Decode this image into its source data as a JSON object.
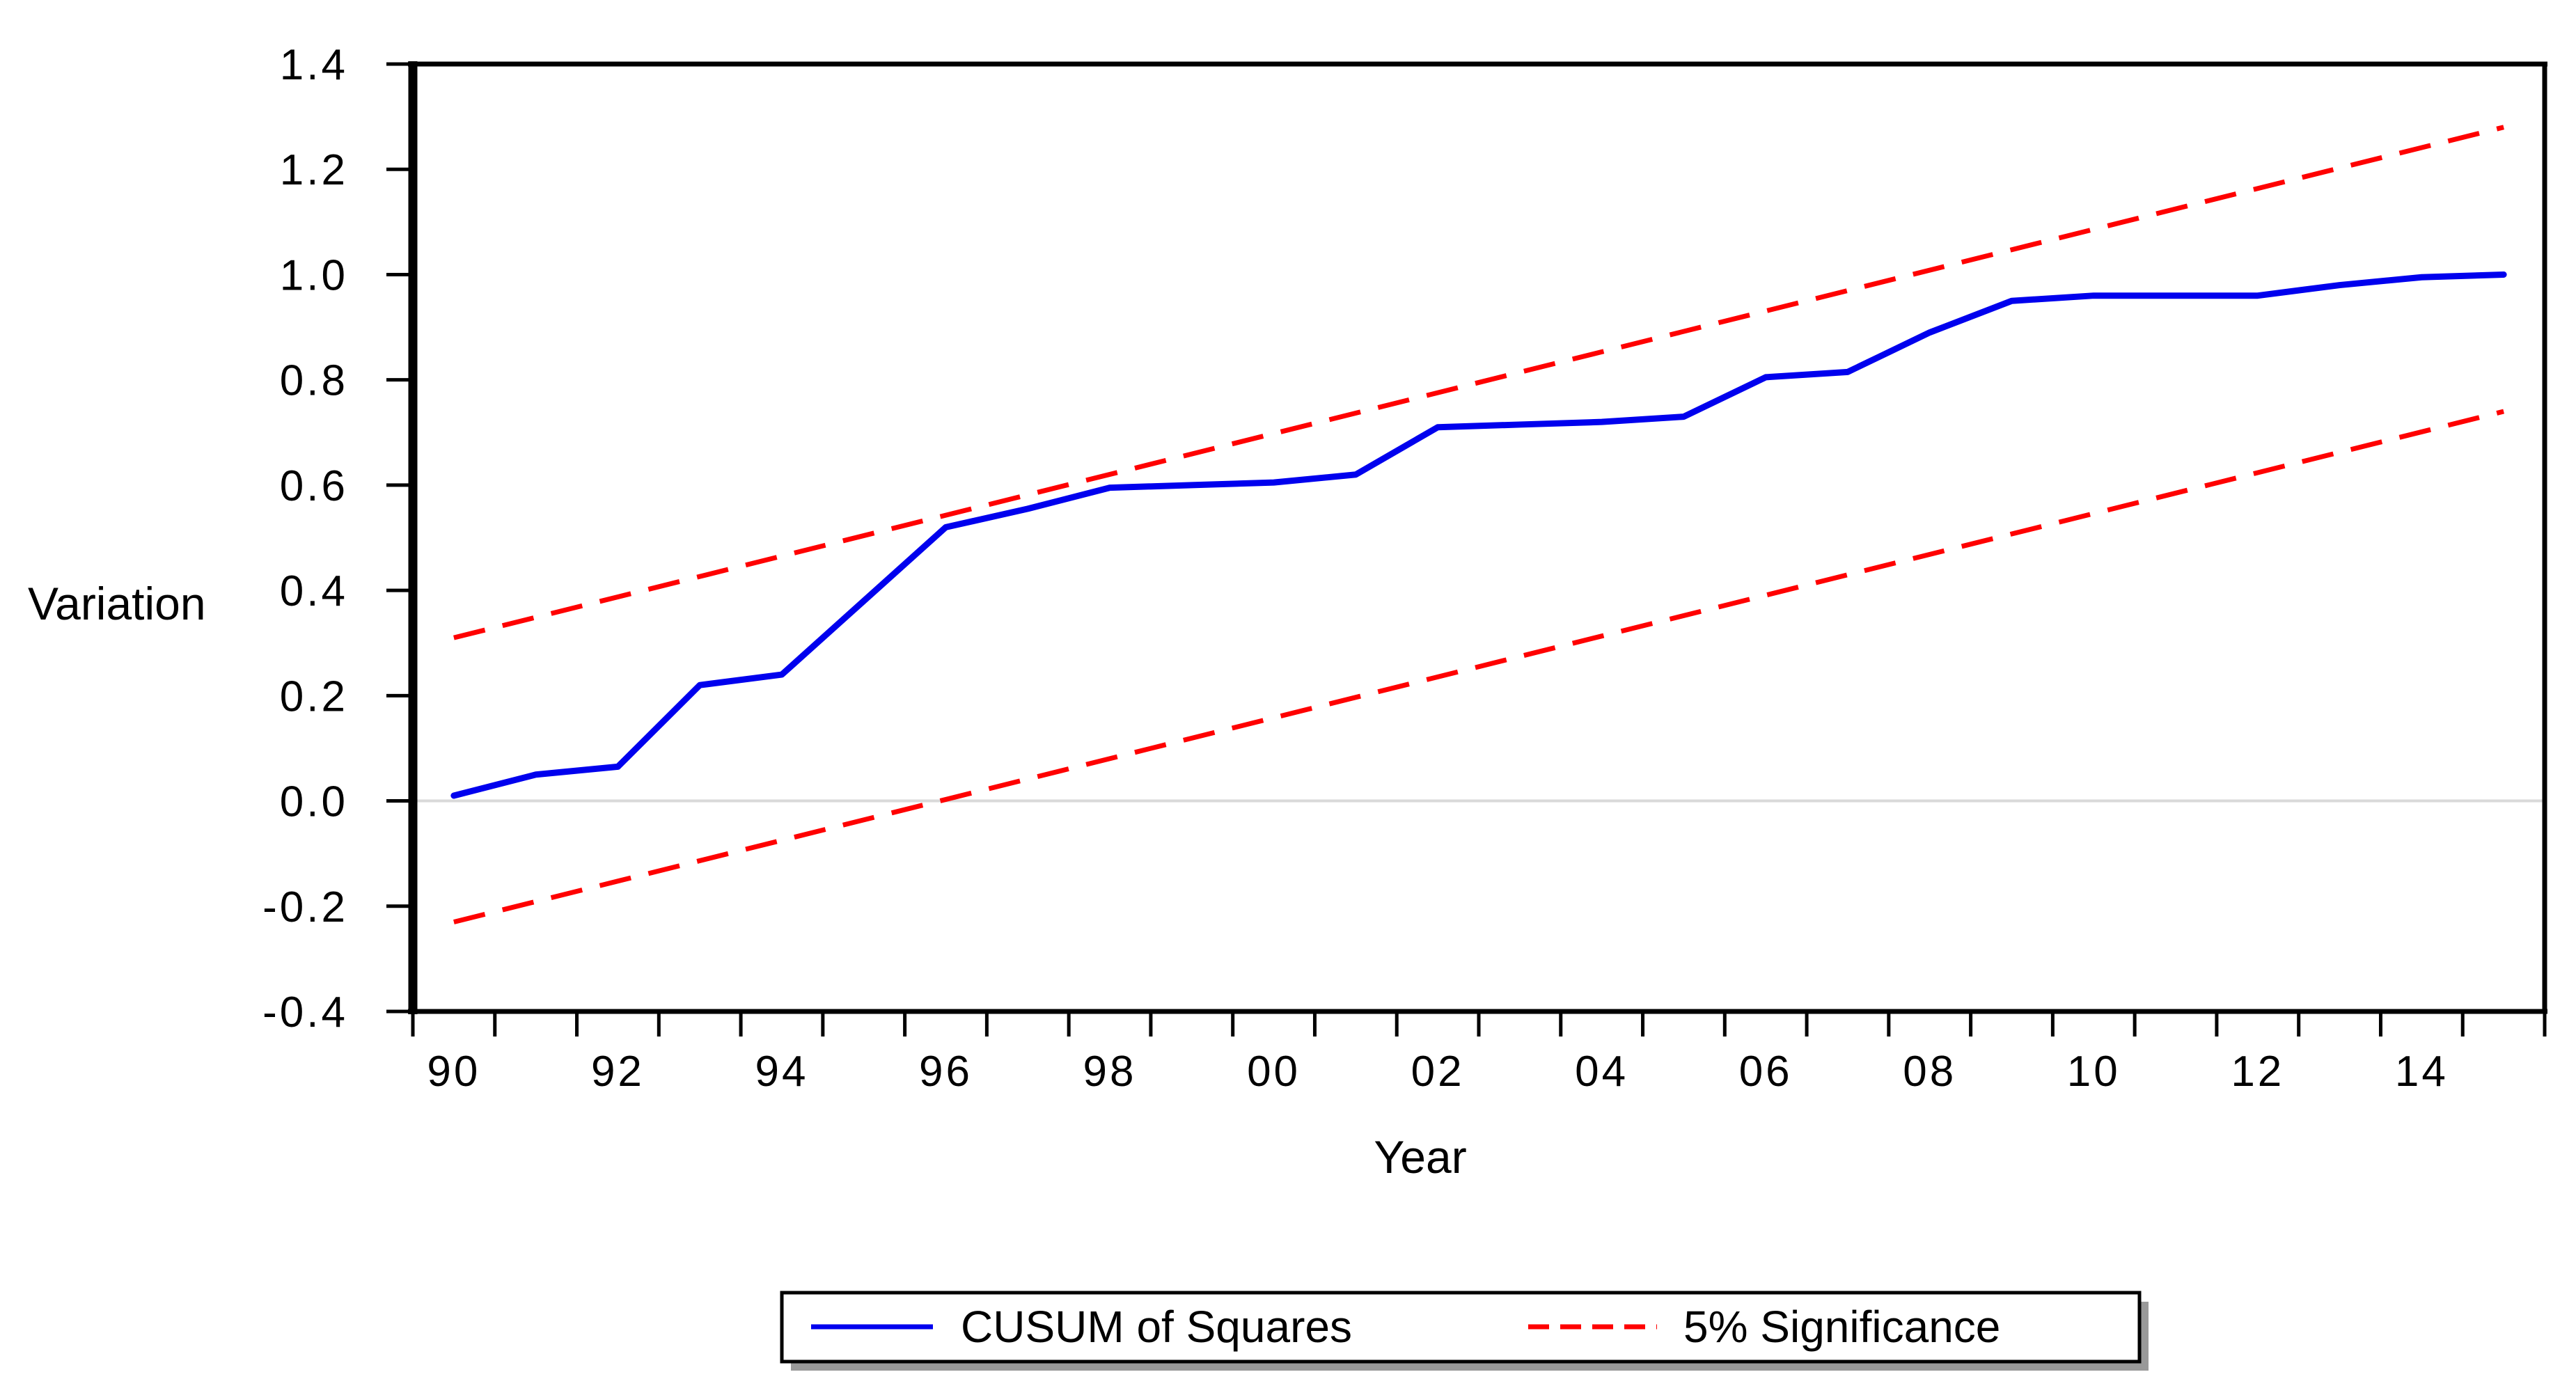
{
  "chart_data": {
    "type": "line",
    "title": "",
    "xlabel": "Year",
    "ylabel": "Variation",
    "x_range_boundaries": [
      1990,
      2016
    ],
    "ylim": [
      -0.4,
      1.4
    ],
    "y_ticks": [
      1.4,
      1.2,
      1.0,
      0.8,
      0.6,
      0.4,
      0.2,
      0.0,
      -0.2,
      -0.4
    ],
    "y_tick_labels": [
      "1.4",
      "1.2",
      "1.0",
      "0.8",
      "0.6",
      "0.4",
      "0.2",
      "0.0",
      "-0.2",
      "-0.4"
    ],
    "x_minor_tick_years": [
      1990,
      1991,
      1992,
      1993,
      1994,
      1995,
      1996,
      1997,
      1998,
      1999,
      2000,
      2001,
      2002,
      2003,
      2004,
      2005,
      2006,
      2007,
      2008,
      2009,
      2010,
      2011,
      2012,
      2013,
      2014,
      2015,
      2016
    ],
    "x_tick_label_years": [
      1990,
      1992,
      1994,
      1996,
      1998,
      2000,
      2002,
      2004,
      2006,
      2008,
      2010,
      2012,
      2014
    ],
    "x_tick_labels": [
      "90",
      "92",
      "94",
      "96",
      "98",
      "00",
      "02",
      "04",
      "06",
      "08",
      "10",
      "12",
      "14"
    ],
    "grid": "horizontal gridline at 0.0 only",
    "gridline_value": 0.0,
    "years": [
      1990,
      1991,
      1992,
      1993,
      1994,
      1995,
      1996,
      1997,
      1998,
      1999,
      2000,
      2001,
      2002,
      2003,
      2004,
      2005,
      2006,
      2007,
      2008,
      2009,
      2010,
      2011,
      2012,
      2013,
      2014,
      2015
    ],
    "series": [
      {
        "name": "CUSUM of Squares",
        "style": "solid",
        "color": "#0000ee",
        "values": [
          0.01,
          0.05,
          0.065,
          0.22,
          0.24,
          0.38,
          0.52,
          0.555,
          0.595,
          0.6,
          0.605,
          0.62,
          0.71,
          0.715,
          0.72,
          0.73,
          0.805,
          0.815,
          0.89,
          0.95,
          0.96,
          0.96,
          0.96,
          0.98,
          0.995,
          1.0
        ]
      },
      {
        "name": "5% Significance (upper bound)",
        "style": "dashed",
        "color": "#ff0000",
        "start": [
          1990,
          0.31
        ],
        "end": [
          2015,
          1.28
        ]
      },
      {
        "name": "5% Significance (lower bound)",
        "style": "dashed",
        "color": "#ff0000",
        "start": [
          1990,
          -0.23
        ],
        "end": [
          2015,
          0.74
        ]
      }
    ],
    "legend": {
      "position": "bottom-center",
      "entries": [
        {
          "label": "CUSUM of Squares",
          "style": "solid",
          "color": "#0000ee"
        },
        {
          "label": "5% Significance",
          "style": "dashed",
          "color": "#ff0000"
        }
      ]
    }
  },
  "colors": {
    "background": "#ffffff",
    "frame": "#000000",
    "zero_gridline": "#d9d9d9",
    "cusum_line": "#0000ee",
    "significance_line": "#ff0000",
    "legend_shadow": "#999999"
  }
}
